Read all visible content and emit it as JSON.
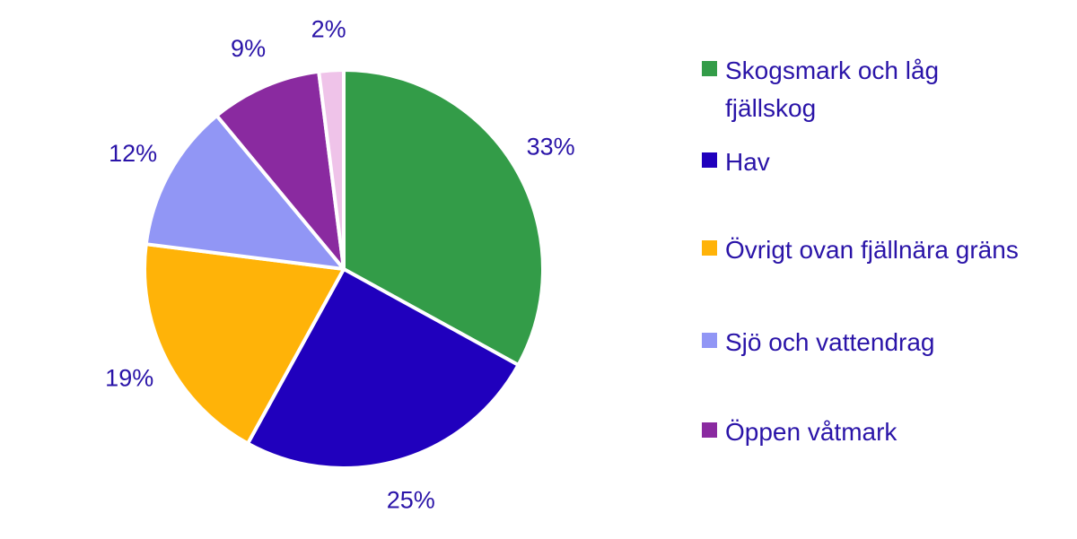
{
  "chart_data": {
    "type": "pie",
    "categories": [
      "Skogsmark och låg fjällskog",
      "Hav",
      "Övrigt ovan fjällnära gräns",
      "Sjö och vattendrag",
      "Öppen våtmark",
      ""
    ],
    "values": [
      33,
      25,
      19,
      12,
      9,
      2
    ],
    "labels": [
      "33%",
      "25%",
      "19%",
      "12%",
      "9%",
      "2%"
    ],
    "colors": [
      "#339c48",
      "#2000bd",
      "#ffb308",
      "#9196f5",
      "#8a2aa0",
      "#efc3e9"
    ],
    "legend_position": "right",
    "label_color": "#2a14a8"
  },
  "legend": {
    "items": [
      {
        "label": "Skogsmark och låg fjällskog",
        "color": "#339c48"
      },
      {
        "label": "Hav",
        "color": "#2000bd"
      },
      {
        "label": "Övrigt ovan fjällnära gräns",
        "color": "#ffb308"
      },
      {
        "label": "Sjö och vattendrag",
        "color": "#9196f5"
      },
      {
        "label": "Öppen våtmark",
        "color": "#8a2aa0"
      }
    ]
  }
}
